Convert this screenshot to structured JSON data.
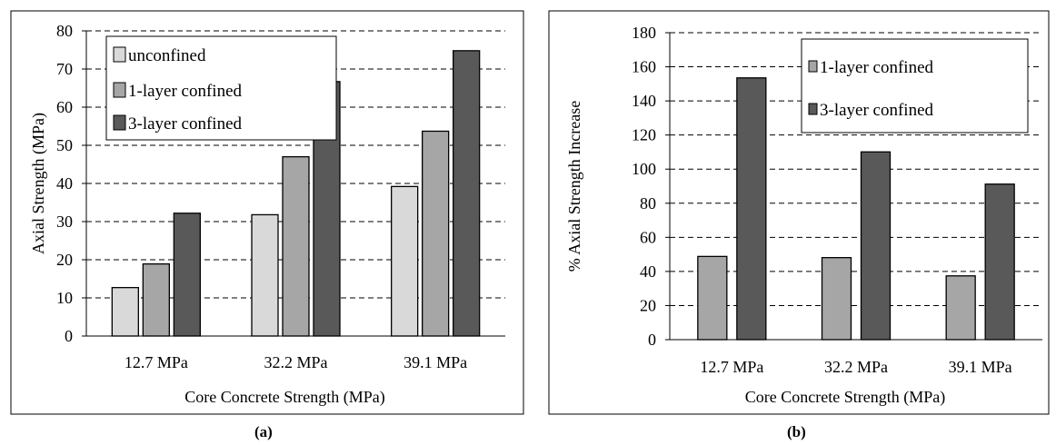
{
  "panels": [
    {
      "label": "(a)"
    },
    {
      "label": "(b)"
    }
  ],
  "chart_data": [
    {
      "type": "bar",
      "title": "",
      "xlabel": "Core Concrete Strength (MPa)",
      "ylabel": "Axial Strength (MPa)",
      "categories": [
        "12.7 MPa",
        "32.2 MPa",
        "39.1 MPa"
      ],
      "ylim": [
        0,
        80
      ],
      "yticks": [
        0,
        10,
        20,
        30,
        40,
        50,
        60,
        70,
        80
      ],
      "grid": "dashed horizontal",
      "legend_position": "top-left",
      "series": [
        {
          "name": "unconfined",
          "color": "#d9d9d9",
          "values": [
            12.7,
            31.8,
            39.2
          ]
        },
        {
          "name": "1-layer confined",
          "color": "#a6a6a6",
          "values": [
            18.9,
            47.0,
            53.7
          ]
        },
        {
          "name": "3-layer confined",
          "color": "#595959",
          "values": [
            32.2,
            66.7,
            74.8
          ]
        }
      ]
    },
    {
      "type": "bar",
      "title": "",
      "xlabel": "Core Concrete Strength (MPa)",
      "ylabel": "% Axial  Strength  Increase",
      "categories": [
        "12.7 MPa",
        "32.2 MPa",
        "39.1 MPa"
      ],
      "ylim": [
        0,
        180
      ],
      "yticks": [
        0,
        20,
        40,
        60,
        80,
        100,
        120,
        140,
        160,
        180
      ],
      "grid": "dashed horizontal",
      "legend_position": "top-right",
      "series": [
        {
          "name": "1-layer confined",
          "color": "#a6a6a6",
          "values": [
            48.8,
            48.1,
            37.4
          ]
        },
        {
          "name": "3-layer confined",
          "color": "#595959",
          "values": [
            153.5,
            110.1,
            91.2
          ]
        }
      ]
    }
  ]
}
